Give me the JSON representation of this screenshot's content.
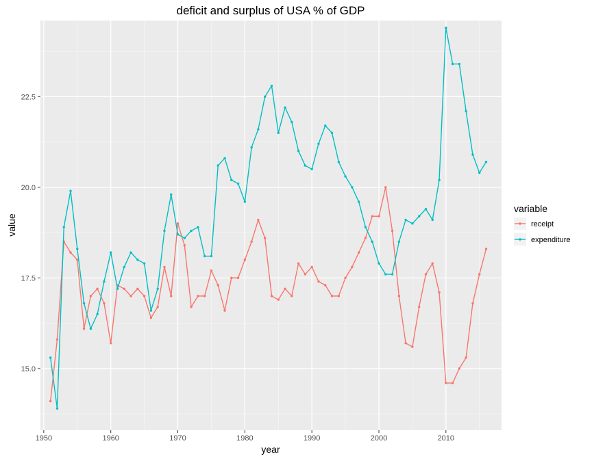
{
  "chart_data": {
    "type": "line",
    "title": "deficit and surplus of USA % of GDP",
    "xlabel": "year",
    "ylabel": "value",
    "xlim": [
      1949.5,
      2018.3
    ],
    "ylim": [
      13.3,
      24.6
    ],
    "x_ticks": [
      1950,
      1960,
      1970,
      1980,
      1990,
      2000,
      2010
    ],
    "x_tick_labels": [
      "1950",
      "1960",
      "1970",
      "1980",
      "1990",
      "2000",
      "2010"
    ],
    "y_ticks": [
      15.0,
      17.5,
      20.0,
      22.5
    ],
    "y_tick_labels": [
      "15.0",
      "17.5",
      "20.0",
      "22.5"
    ],
    "grid": true,
    "legend_position": "right",
    "legend_title": "variable",
    "x": [
      1951,
      1952,
      1953,
      1954,
      1955,
      1956,
      1957,
      1958,
      1959,
      1960,
      1961,
      1962,
      1963,
      1964,
      1965,
      1966,
      1967,
      1968,
      1969,
      1970,
      1971,
      1972,
      1973,
      1974,
      1975,
      1976,
      1977,
      1978,
      1979,
      1980,
      1981,
      1982,
      1983,
      1984,
      1985,
      1986,
      1987,
      1988,
      1989,
      1990,
      1991,
      1992,
      1993,
      1994,
      1995,
      1996,
      1997,
      1998,
      1999,
      2000,
      2001,
      2002,
      2003,
      2004,
      2005,
      2006,
      2007,
      2008,
      2009,
      2010,
      2011,
      2012,
      2013,
      2014,
      2015,
      2016
    ],
    "series": [
      {
        "name": "receipt",
        "color": "#F8766D",
        "values": [
          14.1,
          15.8,
          18.5,
          18.2,
          18.0,
          16.1,
          17.0,
          17.2,
          16.8,
          15.7,
          17.3,
          17.2,
          17.0,
          17.2,
          17.0,
          16.4,
          16.7,
          17.8,
          17.0,
          19.0,
          18.4,
          16.7,
          17.0,
          17.0,
          17.7,
          17.3,
          16.6,
          17.5,
          17.5,
          18.0,
          18.5,
          19.1,
          18.6,
          17.0,
          16.9,
          17.2,
          17.0,
          17.9,
          17.6,
          17.8,
          17.4,
          17.3,
          17.0,
          17.0,
          17.5,
          17.8,
          18.2,
          18.6,
          19.2,
          19.2,
          20.0,
          18.8,
          17.0,
          15.7,
          15.6,
          16.7,
          17.6,
          17.9,
          17.1,
          14.6,
          14.6,
          15.0,
          15.3,
          16.8,
          17.6,
          18.3
        ]
      },
      {
        "name": "expenditure",
        "color": "#00BFC4",
        "values": [
          15.3,
          13.9,
          18.9,
          19.9,
          18.3,
          16.8,
          16.1,
          16.5,
          17.4,
          18.2,
          17.2,
          17.8,
          18.2,
          18.0,
          17.9,
          16.6,
          17.2,
          18.8,
          19.8,
          18.7,
          18.6,
          18.8,
          18.9,
          18.1,
          18.1,
          20.6,
          20.8,
          20.2,
          20.1,
          19.6,
          21.1,
          21.6,
          22.5,
          22.8,
          21.5,
          22.2,
          21.8,
          21.0,
          20.6,
          20.5,
          21.2,
          21.7,
          21.5,
          20.7,
          20.3,
          20.0,
          19.6,
          18.9,
          18.5,
          17.9,
          17.6,
          17.6,
          18.5,
          19.1,
          19.0,
          19.2,
          19.4,
          19.1,
          20.2,
          24.4,
          23.4,
          23.4,
          22.1,
          20.9,
          20.4,
          20.7
        ]
      }
    ]
  }
}
